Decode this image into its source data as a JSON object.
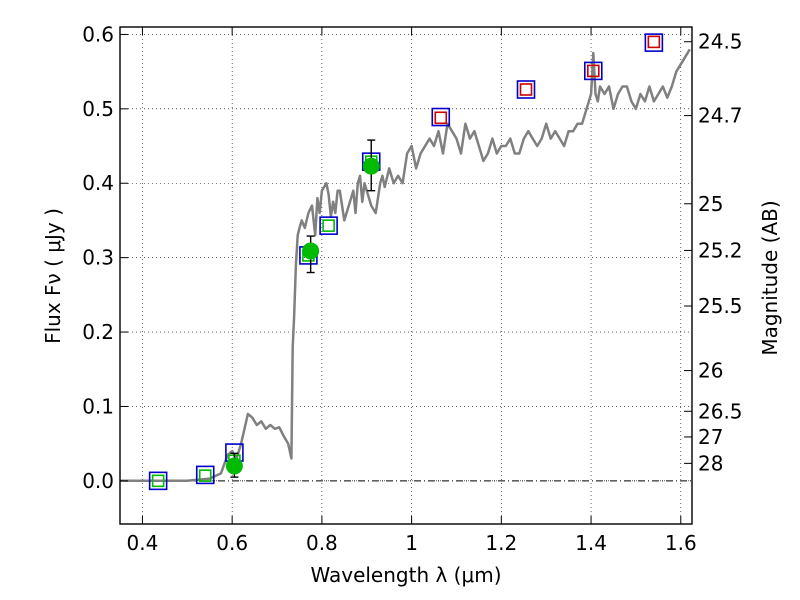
{
  "chart_data": {
    "type": "scatter",
    "xlabel": "Wavelength  λ (μm)",
    "ylabel": "Flux  Fν  ( μJy )",
    "ylabel_right": "Magnitude (AB)",
    "xlim": [
      0.35,
      1.625
    ],
    "ylim": [
      -0.058,
      0.61
    ],
    "grid": true,
    "x_ticks": [
      0.4,
      0.6,
      0.8,
      1.0,
      1.2,
      1.4,
      1.6
    ],
    "x_tick_labels": [
      "0.4",
      "0.6",
      "0.8",
      "1",
      "1.2",
      "1.4",
      "1.6"
    ],
    "y_ticks": [
      0.0,
      0.1,
      0.2,
      0.3,
      0.4,
      0.5,
      0.6
    ],
    "y_tick_labels": [
      "0.0",
      "0.1",
      "0.2",
      "0.3",
      "0.4",
      "0.5",
      "0.6"
    ],
    "right_ticks": [
      {
        "label": "24.5",
        "flux": 0.5902
      },
      {
        "label": "24.7",
        "flux": 0.4909
      },
      {
        "label": "25",
        "flux": 0.3724
      },
      {
        "label": "25.2",
        "flux": 0.3097
      },
      {
        "label": "25.5",
        "flux": 0.235
      },
      {
        "label": "26",
        "flux": 0.1482
      },
      {
        "label": "26.5",
        "flux": 0.0935
      },
      {
        "label": "27",
        "flux": 0.059
      },
      {
        "label": "28",
        "flux": 0.0235
      }
    ],
    "series": [
      {
        "name": "model spectrum",
        "kind": "line",
        "color": "#808080",
        "x": [
          0.35,
          0.5,
          0.55,
          0.575,
          0.59,
          0.6,
          0.61,
          0.62,
          0.635,
          0.645,
          0.655,
          0.665,
          0.675,
          0.685,
          0.695,
          0.705,
          0.715,
          0.725,
          0.732,
          0.735,
          0.738,
          0.742,
          0.746,
          0.75,
          0.755,
          0.762,
          0.77,
          0.778,
          0.785,
          0.79,
          0.795,
          0.8,
          0.805,
          0.81,
          0.815,
          0.82,
          0.825,
          0.83,
          0.835,
          0.84,
          0.85,
          0.86,
          0.87,
          0.875,
          0.88,
          0.885,
          0.89,
          0.895,
          0.9,
          0.905,
          0.91,
          0.92,
          0.93,
          0.935,
          0.94,
          0.95,
          0.96,
          0.97,
          0.98,
          0.99,
          1.0,
          1.01,
          1.02,
          1.03,
          1.04,
          1.05,
          1.06,
          1.07,
          1.08,
          1.09,
          1.1,
          1.11,
          1.12,
          1.13,
          1.14,
          1.15,
          1.16,
          1.17,
          1.18,
          1.19,
          1.2,
          1.21,
          1.22,
          1.23,
          1.24,
          1.25,
          1.26,
          1.27,
          1.28,
          1.29,
          1.3,
          1.31,
          1.32,
          1.33,
          1.34,
          1.35,
          1.36,
          1.37,
          1.38,
          1.39,
          1.4,
          1.405,
          1.41,
          1.415,
          1.42,
          1.43,
          1.44,
          1.45,
          1.46,
          1.47,
          1.48,
          1.49,
          1.5,
          1.51,
          1.52,
          1.53,
          1.54,
          1.55,
          1.56,
          1.57,
          1.58,
          1.59,
          1.6,
          1.61,
          1.62
        ],
        "y": [
          0.0,
          0.0,
          0.003,
          0.01,
          0.035,
          0.04,
          0.03,
          0.05,
          0.09,
          0.085,
          0.075,
          0.08,
          0.07,
          0.075,
          0.07,
          0.072,
          0.06,
          0.05,
          0.03,
          0.18,
          0.22,
          0.29,
          0.33,
          0.34,
          0.35,
          0.34,
          0.36,
          0.37,
          0.33,
          0.38,
          0.36,
          0.39,
          0.395,
          0.4,
          0.385,
          0.355,
          0.375,
          0.36,
          0.39,
          0.39,
          0.35,
          0.37,
          0.39,
          0.36,
          0.4,
          0.41,
          0.375,
          0.4,
          0.39,
          0.38,
          0.37,
          0.36,
          0.4,
          0.41,
          0.395,
          0.42,
          0.4,
          0.41,
          0.4,
          0.44,
          0.45,
          0.42,
          0.44,
          0.45,
          0.46,
          0.45,
          0.47,
          0.44,
          0.48,
          0.47,
          0.46,
          0.44,
          0.48,
          0.46,
          0.47,
          0.45,
          0.43,
          0.44,
          0.46,
          0.44,
          0.45,
          0.45,
          0.46,
          0.44,
          0.44,
          0.46,
          0.47,
          0.46,
          0.45,
          0.46,
          0.48,
          0.46,
          0.47,
          0.46,
          0.45,
          0.47,
          0.47,
          0.48,
          0.48,
          0.5,
          0.52,
          0.575,
          0.52,
          0.51,
          0.53,
          0.52,
          0.53,
          0.5,
          0.52,
          0.53,
          0.53,
          0.51,
          0.5,
          0.52,
          0.51,
          0.53,
          0.51,
          0.52,
          0.53,
          0.515,
          0.53,
          0.55,
          0.56,
          0.57,
          0.58
        ]
      },
      {
        "name": "blue squares",
        "kind": "square",
        "color": "#0000cc",
        "x": [
          0.435,
          0.54,
          0.605,
          0.77,
          0.815,
          0.91,
          1.065,
          1.255,
          1.405,
          1.54
        ],
        "y": [
          0.0,
          0.008,
          0.038,
          0.303,
          0.343,
          0.429,
          0.489,
          0.526,
          0.551,
          0.589
        ]
      },
      {
        "name": "green squares",
        "kind": "square",
        "color": "#00bb00",
        "x": [
          0.435,
          0.54,
          0.605,
          0.77,
          0.815,
          0.91
        ],
        "y": [
          0.0,
          0.007,
          0.027,
          0.303,
          0.343,
          0.429
        ]
      },
      {
        "name": "red squares",
        "kind": "square",
        "color": "#cc0000",
        "x": [
          1.065,
          1.255,
          1.405,
          1.54
        ],
        "y": [
          0.488,
          0.526,
          0.551,
          0.59
        ]
      },
      {
        "name": "observed fluxes",
        "kind": "point",
        "color": "#00bb00",
        "x": [
          0.605,
          0.775,
          0.91
        ],
        "y": [
          0.02,
          0.309,
          0.423
        ],
        "err_low": [
          0.005,
          0.28,
          0.39
        ],
        "err_high": [
          0.037,
          0.329,
          0.458
        ]
      }
    ]
  }
}
